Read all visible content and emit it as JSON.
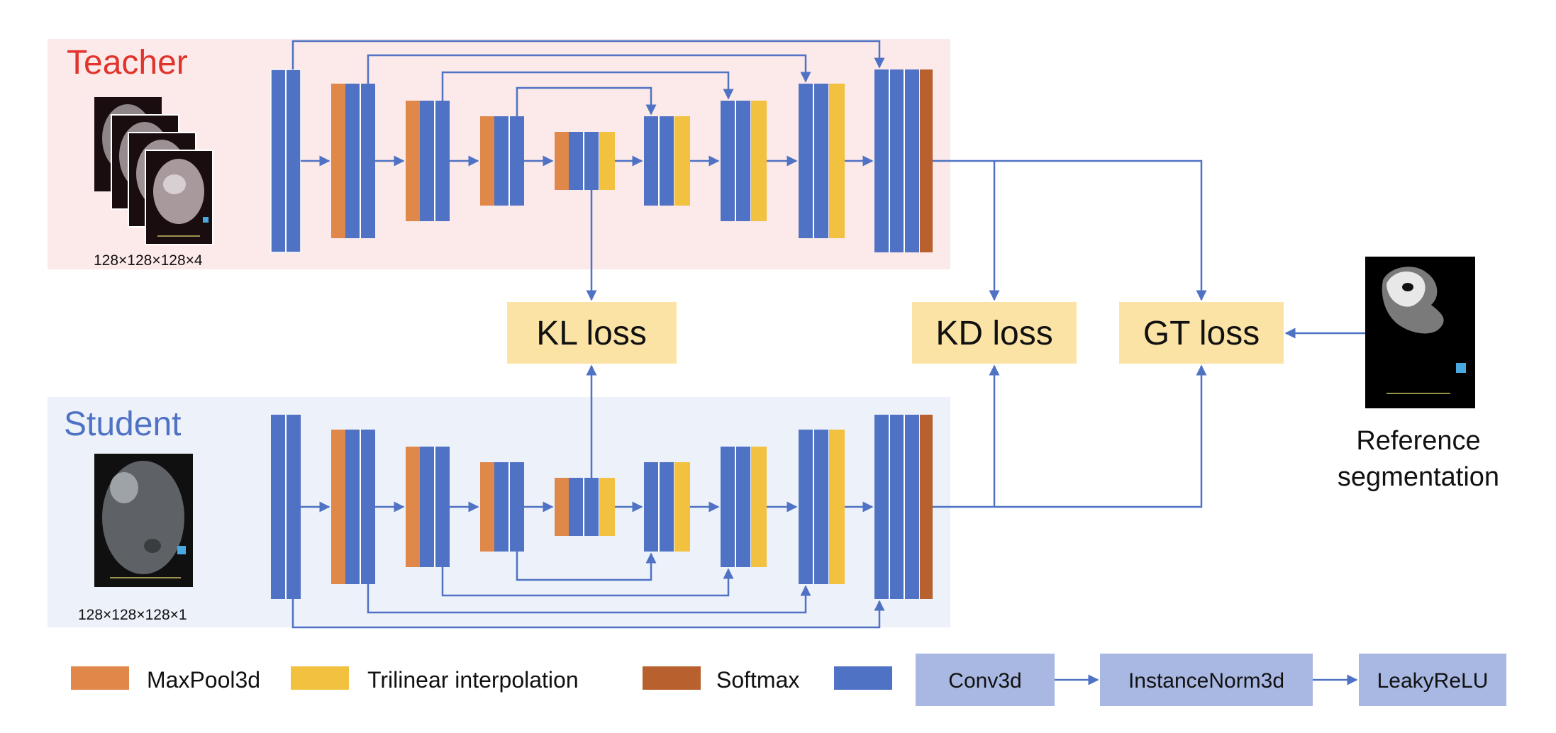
{
  "teacher": {
    "label": "Teacher",
    "input_size": "128×128×128×4"
  },
  "student": {
    "label": "Student",
    "input_size": "128×128×128×1"
  },
  "losses": {
    "kl": "KL loss",
    "kd": "KD loss",
    "gt": "GT loss"
  },
  "reference": {
    "line1": "Reference",
    "line2": "segmentation"
  },
  "legend": {
    "maxpool": "MaxPool3d",
    "trilinear": "Trilinear interpolation",
    "softmax": "Softmax",
    "conv": "Conv3d",
    "instnorm": "InstanceNorm3d",
    "relu": "LeakyReLU"
  },
  "colors": {
    "teacher_bg": "#fce9e9",
    "student_bg": "#edf1f9",
    "conv_blue": "#4f72c4",
    "maxpool_orange": "#e0874a",
    "trilinear_yellow": "#f2c13f",
    "softmax_brown": "#b8612f",
    "loss_box": "#fbe3a6",
    "legend_box": "#a8b8e2",
    "arrow": "#4f72c4",
    "teacher_text": "#e0342c",
    "student_text": "#4f72c4"
  }
}
